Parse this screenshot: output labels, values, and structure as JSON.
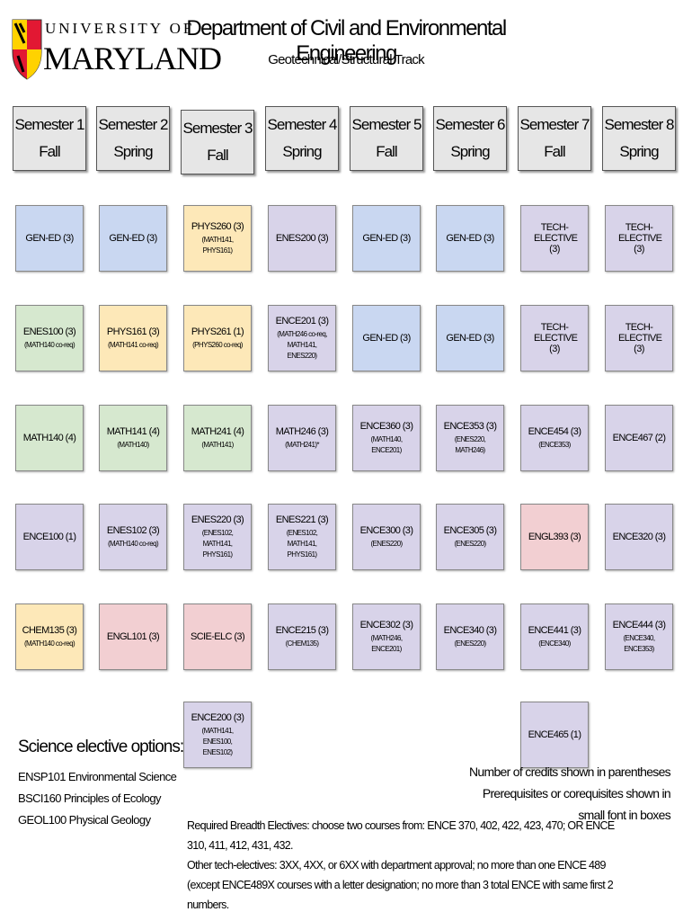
{
  "header": {
    "logo_top": "UNIVERSITY OF",
    "logo_bottom": "MARYLAND",
    "title": "Department of Civil and Environmental Engineering",
    "subtitle": "Geotechnical/Structural Track"
  },
  "semesters": [
    {
      "semester": "Semester 1",
      "term": "Fall",
      "courses": [
        {
          "name": "GEN-ED (3)",
          "color": "#c9d7f1"
        },
        {
          "name": "ENES100 (3)",
          "note": "(MATH140 co-req)",
          "color": "#d6e8cf"
        },
        {
          "name": "MATH140 (4)",
          "color": "#d6e8cf"
        },
        {
          "name": "ENCE100 (1)",
          "color": "#d8d3e9"
        },
        {
          "name": "CHEM135 (3)",
          "note": "(MATH140 co-req)",
          "color": "#fde8b8"
        }
      ]
    },
    {
      "semester": "Semester 2",
      "term": "Spring",
      "courses": [
        {
          "name": "GEN-ED (3)",
          "color": "#c9d7f1"
        },
        {
          "name": "PHYS161 (3)",
          "note": "(MATH141 co-req)",
          "color": "#fde8b8"
        },
        {
          "name": "MATH141 (4)",
          "note": "(MATH140)",
          "color": "#d6e8cf"
        },
        {
          "name": "ENES102 (3)",
          "note": "(MATH140 co-req)",
          "color": "#d8d3e9"
        },
        {
          "name": "ENGL101 (3)",
          "color": "#f2cfd2"
        }
      ]
    },
    {
      "semester": "Semester 3",
      "term": "Fall",
      "courses": [
        {
          "name": "PHYS260 (3)",
          "note": "(MATH141, PHYS161)",
          "color": "#fde8b8"
        },
        {
          "name": "PHYS261 (1)",
          "note": "(PHYS260 co-req)",
          "color": "#fde8b8"
        },
        {
          "name": "MATH241 (4)",
          "note": "(MATH141)",
          "color": "#d6e8cf"
        },
        {
          "name": "ENES220 (3)",
          "note": "(ENES102, MATH141, PHYS161)",
          "color": "#d8d3e9"
        },
        {
          "name": "SCIE-ELC (3)",
          "color": "#f2cfd2"
        },
        {
          "name": "ENCE200 (3)",
          "note": "(MATH141, ENES100, ENES102)",
          "color": "#d8d3e9"
        }
      ]
    },
    {
      "semester": "Semester 4",
      "term": "Spring",
      "courses": [
        {
          "name": "ENES200 (3)",
          "color": "#d8d3e9"
        },
        {
          "name": "ENCE201 (3)",
          "note": "(MATH246 co-req, MATH141, ENES220)",
          "color": "#d8d3e9"
        },
        {
          "name": "MATH246 (3)",
          "note": "(MATH241)*",
          "color": "#d8d3e9"
        },
        {
          "name": "ENES221 (3)",
          "note": "(ENES102, MATH141, PHYS161)",
          "color": "#d8d3e9"
        },
        {
          "name": "ENCE215 (3)",
          "note": "(CHEM135)",
          "color": "#d8d3e9"
        }
      ]
    },
    {
      "semester": "Semester 5",
      "term": "Fall",
      "courses": [
        {
          "name": "GEN-ED (3)",
          "color": "#c9d7f1"
        },
        {
          "name": "GEN-ED (3)",
          "color": "#c9d7f1"
        },
        {
          "name": "ENCE360 (3)",
          "note": "(MATH140, ENCE201)",
          "color": "#d8d3e9"
        },
        {
          "name": "ENCE300 (3)",
          "note": "(ENES220)",
          "color": "#d8d3e9"
        },
        {
          "name": "ENCE302 (3)",
          "note": "(MATH246, ENCE201)",
          "color": "#d8d3e9"
        }
      ]
    },
    {
      "semester": "Semester 6",
      "term": "Spring",
      "courses": [
        {
          "name": "GEN-ED (3)",
          "color": "#c9d7f1"
        },
        {
          "name": "GEN-ED (3)",
          "color": "#c9d7f1"
        },
        {
          "name": "ENCE353 (3)",
          "note": "(ENES220, MATH246)",
          "color": "#d8d3e9"
        },
        {
          "name": "ENCE305 (3)",
          "note": "(ENES220)",
          "color": "#d8d3e9"
        },
        {
          "name": "ENCE340 (3)",
          "note": "(ENES220)",
          "color": "#d8d3e9"
        }
      ]
    },
    {
      "semester": "Semester 7",
      "term": "Fall",
      "courses": [
        {
          "name": "TECH-ELECTIVE (3)",
          "color": "#d8d3e9"
        },
        {
          "name": "TECH-ELECTIVE (3)",
          "color": "#d8d3e9"
        },
        {
          "name": "ENCE454 (3)",
          "note": "(ENCE353)",
          "color": "#d8d3e9"
        },
        {
          "name": "ENGL393 (3)",
          "color": "#f2cfd2"
        },
        {
          "name": "ENCE441 (3)",
          "note": "(ENCE340)",
          "color": "#d8d3e9"
        },
        {
          "name": "ENCE465 (1)",
          "color": "#d8d3e9"
        }
      ]
    },
    {
      "semester": "Semester 8",
      "term": "Spring",
      "courses": [
        {
          "name": "TECH-ELECTIVE (3)",
          "color": "#d8d3e9"
        },
        {
          "name": "TECH-ELECTIVE (3)",
          "color": "#d8d3e9"
        },
        {
          "name": "ENCE467 (2)",
          "color": "#d8d3e9"
        },
        {
          "name": "ENCE320 (3)",
          "color": "#d8d3e9"
        },
        {
          "name": "ENCE444 (3)",
          "note": "(ENCE340, ENCE353)",
          "color": "#d8d3e9"
        }
      ]
    }
  ],
  "science_electives": {
    "title": "Science elective options:",
    "items": [
      "ENSP101 Environmental Science",
      "BSCI160 Principles of Ecology",
      "GEOL100 Physical Geology"
    ]
  },
  "legend": [
    "Number of credits shown in parentheses",
    "Prerequisites or corequisites shown in small font in boxes"
  ],
  "footnotes": [
    "Required Breadth Electives: choose two courses from: ENCE 370, 402, 422, 423, 470; OR ENCE 310, 411, 412, 431, 432.",
    "Other tech-electives: 3XX, 4XX, or 6XX with department approval; no more than one ENCE 489 (except ENCE489X courses with a letter designation; no more than 3 total ENCE with same first 2 numbers."
  ]
}
